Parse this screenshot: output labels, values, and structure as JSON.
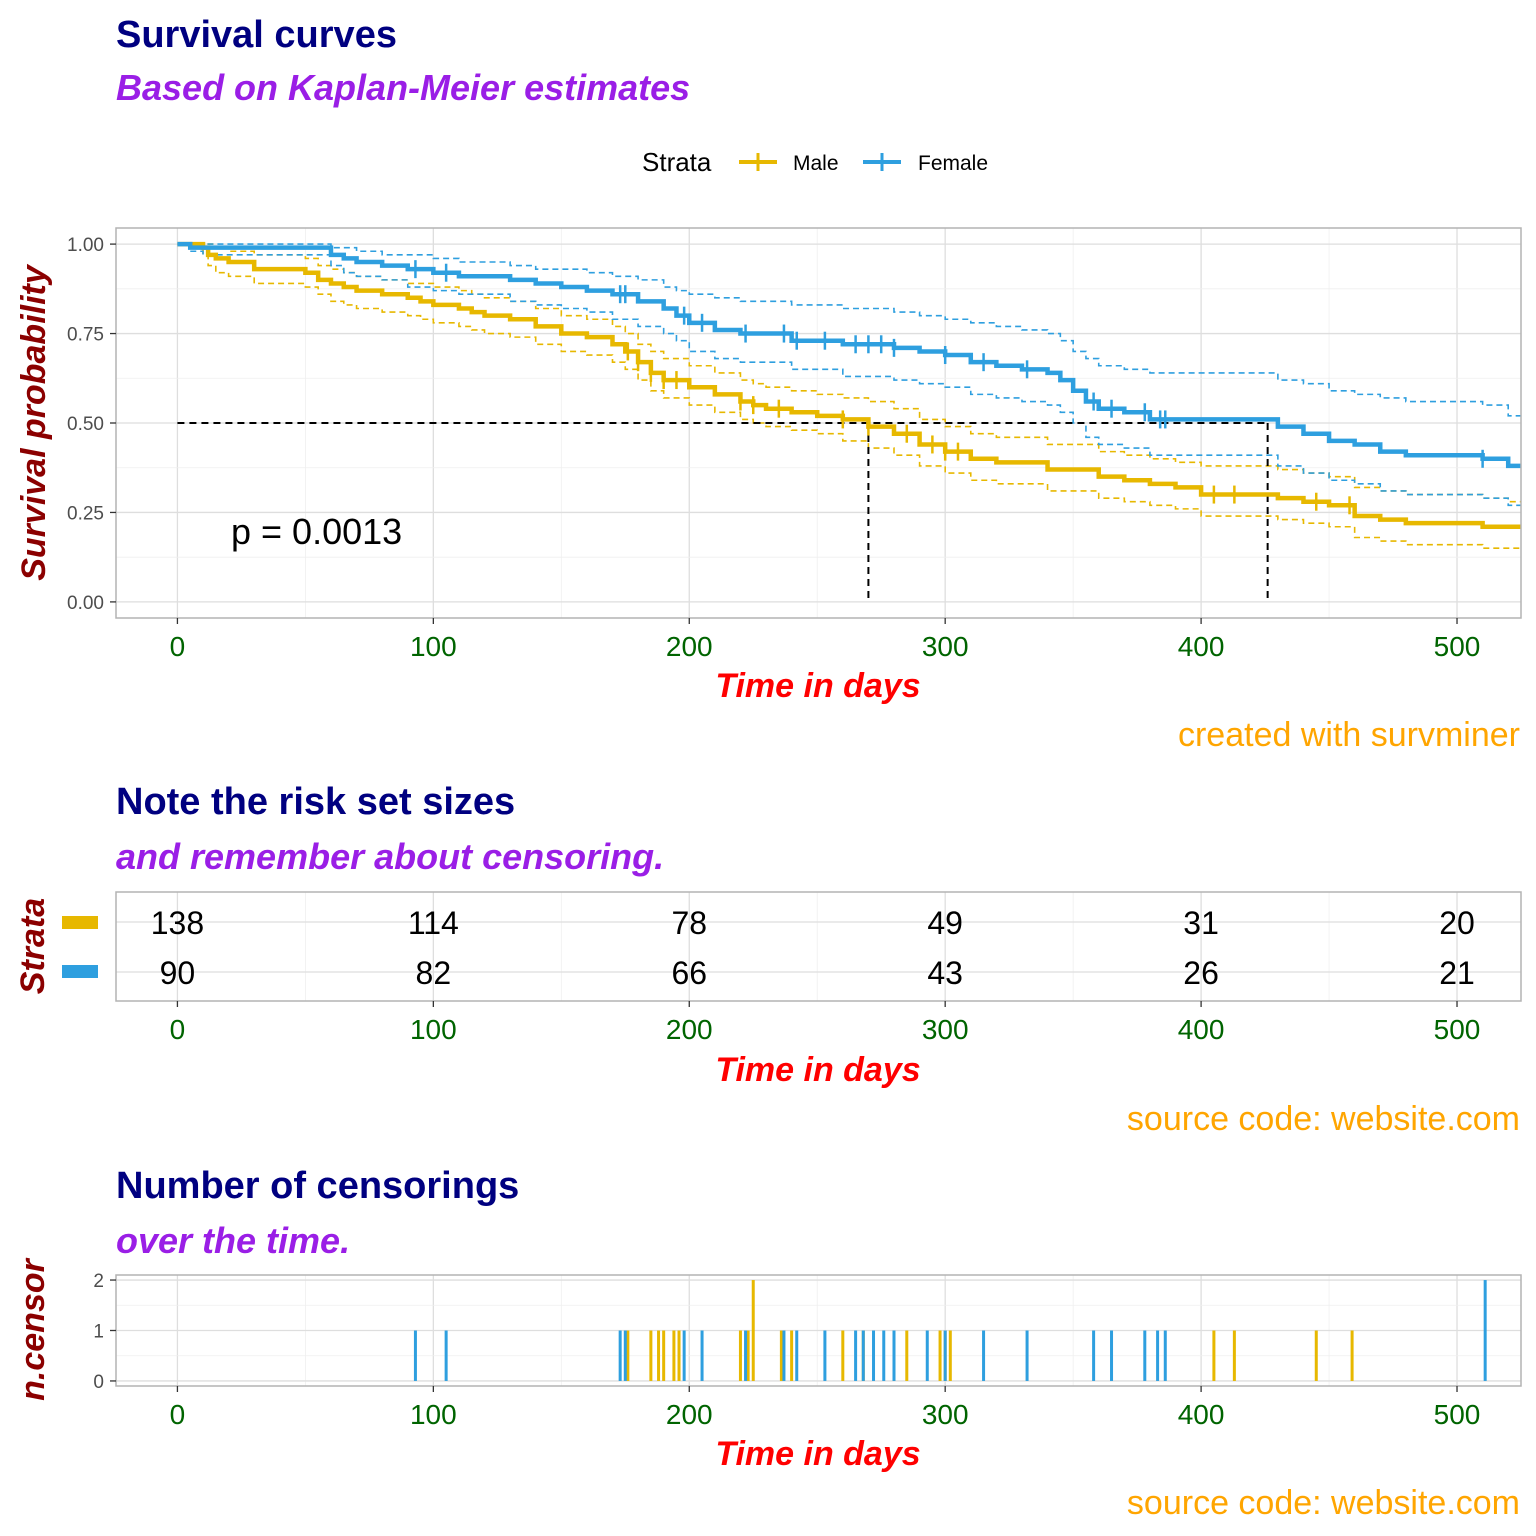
{
  "colors": {
    "male": "#E7B800",
    "female": "#2E9FDF"
  },
  "survival_plot": {
    "title": "Survival curves",
    "subtitle": "Based on Kaplan-Meier estimates",
    "caption": "created with survminer",
    "legend_title": "Strata",
    "xlabel": "Time in days",
    "ylabel": "Survival probability",
    "pvalue": "p = 0.0013"
  },
  "risk_table": {
    "title": "Note the risk set sizes",
    "subtitle": "and remember about censoring.",
    "caption": "source code: website.com",
    "xlabel": "Time in days",
    "ylabel": "Strata"
  },
  "censor_plot": {
    "title": "Number of censorings",
    "subtitle": "over the time.",
    "caption": "source code: website.com",
    "xlabel": "Time in days",
    "ylabel": "n.censor"
  },
  "chart_data": [
    {
      "type": "line",
      "title": "Survival curves",
      "subtitle": "Based on Kaplan-Meier estimates",
      "xlabel": "Time in days",
      "ylabel": "Survival probability",
      "xlim": [
        -24,
        525
      ],
      "ylim": [
        -0.045,
        1.045
      ],
      "x_ticks": [
        0,
        100,
        200,
        300,
        400,
        500
      ],
      "y_ticks": [
        0.0,
        0.25,
        0.5,
        0.75,
        1.0
      ],
      "y_tick_labels": [
        "0.00",
        "0.25",
        "0.50",
        "0.75",
        "1.00"
      ],
      "grid": true,
      "legend_position": "top",
      "median_line": 0.5,
      "medians": [
        270,
        426
      ],
      "series": [
        {
          "name": "Male",
          "color": "#E7B800",
          "x": [
            0,
            10,
            12,
            15,
            20,
            30,
            50,
            55,
            60,
            65,
            70,
            80,
            90,
            95,
            100,
            110,
            115,
            120,
            130,
            140,
            150,
            160,
            170,
            175,
            180,
            185,
            190,
            200,
            210,
            220,
            225,
            230,
            240,
            250,
            260,
            270,
            280,
            290,
            300,
            310,
            320,
            340,
            360,
            370,
            380,
            390,
            400,
            420,
            430,
            440,
            450,
            460,
            470,
            480,
            500,
            510,
            520
          ],
          "y": [
            1.0,
            0.99,
            0.97,
            0.96,
            0.95,
            0.93,
            0.92,
            0.9,
            0.89,
            0.88,
            0.87,
            0.86,
            0.85,
            0.84,
            0.83,
            0.82,
            0.81,
            0.8,
            0.79,
            0.77,
            0.75,
            0.74,
            0.72,
            0.7,
            0.67,
            0.64,
            0.62,
            0.6,
            0.58,
            0.56,
            0.55,
            0.54,
            0.53,
            0.52,
            0.51,
            0.49,
            0.47,
            0.44,
            0.42,
            0.4,
            0.39,
            0.37,
            0.35,
            0.34,
            0.33,
            0.32,
            0.3,
            0.3,
            0.29,
            0.28,
            0.27,
            0.24,
            0.23,
            0.22,
            0.22,
            0.21,
            0.21
          ],
          "upper": [
            1.0,
            1.0,
            1.0,
            0.99,
            0.98,
            0.97,
            0.96,
            0.94,
            0.93,
            0.92,
            0.91,
            0.9,
            0.89,
            0.89,
            0.88,
            0.87,
            0.86,
            0.85,
            0.84,
            0.82,
            0.8,
            0.79,
            0.77,
            0.75,
            0.72,
            0.7,
            0.68,
            0.66,
            0.64,
            0.62,
            0.61,
            0.6,
            0.59,
            0.58,
            0.57,
            0.56,
            0.54,
            0.51,
            0.49,
            0.47,
            0.46,
            0.44,
            0.42,
            0.41,
            0.4,
            0.39,
            0.38,
            0.38,
            0.37,
            0.36,
            0.35,
            0.32,
            0.31,
            0.3,
            0.3,
            0.29,
            0.28
          ],
          "lower": [
            1.0,
            0.97,
            0.94,
            0.92,
            0.91,
            0.89,
            0.88,
            0.86,
            0.84,
            0.83,
            0.82,
            0.81,
            0.8,
            0.79,
            0.78,
            0.77,
            0.76,
            0.75,
            0.74,
            0.72,
            0.7,
            0.69,
            0.67,
            0.65,
            0.62,
            0.59,
            0.57,
            0.55,
            0.53,
            0.51,
            0.5,
            0.49,
            0.48,
            0.47,
            0.45,
            0.43,
            0.41,
            0.38,
            0.36,
            0.34,
            0.33,
            0.31,
            0.29,
            0.28,
            0.27,
            0.26,
            0.24,
            0.24,
            0.23,
            0.22,
            0.21,
            0.18,
            0.17,
            0.16,
            0.16,
            0.15,
            0.15
          ],
          "censor_x": [
            176,
            180,
            185,
            190,
            195,
            220,
            225,
            235,
            260,
            270,
            285,
            295,
            300,
            305,
            405,
            413,
            445,
            458
          ]
        },
        {
          "name": "Female",
          "color": "#2E9FDF",
          "x": [
            0,
            5,
            10,
            20,
            40,
            55,
            60,
            65,
            70,
            80,
            90,
            100,
            110,
            120,
            130,
            140,
            150,
            160,
            170,
            180,
            190,
            195,
            200,
            210,
            220,
            240,
            260,
            280,
            290,
            300,
            310,
            320,
            330,
            340,
            345,
            350,
            355,
            360,
            370,
            380,
            400,
            420,
            430,
            440,
            450,
            460,
            470,
            480,
            500,
            510,
            520
          ],
          "y": [
            1.0,
            0.99,
            0.99,
            0.99,
            0.99,
            0.99,
            0.97,
            0.96,
            0.95,
            0.94,
            0.93,
            0.92,
            0.91,
            0.91,
            0.9,
            0.89,
            0.88,
            0.87,
            0.86,
            0.84,
            0.82,
            0.8,
            0.78,
            0.76,
            0.75,
            0.73,
            0.72,
            0.71,
            0.7,
            0.69,
            0.67,
            0.66,
            0.65,
            0.64,
            0.62,
            0.59,
            0.56,
            0.54,
            0.53,
            0.51,
            0.51,
            0.51,
            0.49,
            0.47,
            0.45,
            0.44,
            0.42,
            0.41,
            0.41,
            0.4,
            0.38
          ],
          "upper": [
            1.0,
            1.0,
            1.0,
            1.0,
            1.0,
            1.0,
            0.99,
            0.99,
            0.98,
            0.97,
            0.97,
            0.96,
            0.95,
            0.95,
            0.94,
            0.93,
            0.93,
            0.92,
            0.91,
            0.9,
            0.88,
            0.87,
            0.86,
            0.85,
            0.84,
            0.83,
            0.82,
            0.81,
            0.8,
            0.79,
            0.78,
            0.77,
            0.76,
            0.75,
            0.73,
            0.7,
            0.68,
            0.66,
            0.65,
            0.64,
            0.64,
            0.64,
            0.62,
            0.61,
            0.59,
            0.58,
            0.57,
            0.56,
            0.56,
            0.55,
            0.52
          ],
          "lower": [
            1.0,
            0.98,
            0.97,
            0.97,
            0.97,
            0.97,
            0.94,
            0.92,
            0.91,
            0.9,
            0.88,
            0.87,
            0.86,
            0.86,
            0.84,
            0.83,
            0.82,
            0.81,
            0.79,
            0.77,
            0.75,
            0.73,
            0.7,
            0.68,
            0.67,
            0.65,
            0.63,
            0.62,
            0.61,
            0.6,
            0.58,
            0.57,
            0.56,
            0.55,
            0.53,
            0.5,
            0.46,
            0.44,
            0.43,
            0.41,
            0.41,
            0.41,
            0.38,
            0.36,
            0.34,
            0.33,
            0.31,
            0.3,
            0.3,
            0.29,
            0.27
          ],
          "censor_x": [
            93,
            105,
            173,
            175,
            198,
            205,
            222,
            237,
            242,
            253,
            265,
            270,
            275,
            280,
            300,
            315,
            332,
            358,
            365,
            378,
            384,
            386,
            510
          ]
        }
      ]
    },
    {
      "type": "table",
      "title": "Note the risk set sizes",
      "subtitle": "and remember about censoring.",
      "xlabel": "Time in days",
      "ylabel": "Strata",
      "x_ticks": [
        0,
        100,
        200,
        300,
        400,
        500
      ],
      "rows": [
        {
          "name": "Male",
          "color": "#E7B800",
          "values": [
            "138",
            "114",
            "78",
            "49",
            "31",
            "20"
          ]
        },
        {
          "name": "Female",
          "color": "#2E9FDF",
          "values": [
            "90",
            "82",
            "66",
            "43",
            "26",
            "21"
          ]
        }
      ]
    },
    {
      "type": "bar",
      "title": "Number of censorings",
      "subtitle": "over the time.",
      "xlabel": "Time in days",
      "ylabel": "n.censor",
      "xlim": [
        -24,
        525
      ],
      "ylim": [
        -0.1,
        2.1
      ],
      "x_ticks": [
        0,
        100,
        200,
        300,
        400,
        500
      ],
      "y_ticks": [
        0,
        1,
        2
      ],
      "grid": true,
      "series": [
        {
          "name": "Male",
          "color": "#E7B800",
          "x": [
            176,
            185,
            188,
            190,
            194,
            196,
            220,
            223,
            225,
            236,
            240,
            260,
            268,
            280,
            285,
            298,
            300,
            302,
            405,
            413,
            445,
            459
          ],
          "values": [
            1,
            1,
            1,
            1,
            1,
            1,
            1,
            1,
            2,
            1,
            1,
            1,
            1,
            1,
            1,
            1,
            1,
            1,
            1,
            1,
            1,
            1
          ]
        },
        {
          "name": "Female",
          "color": "#2E9FDF",
          "x": [
            93,
            105,
            173,
            175,
            198,
            205,
            222,
            237,
            242,
            253,
            265,
            268,
            272,
            276,
            280,
            293,
            300,
            315,
            332,
            358,
            365,
            378,
            383,
            386,
            511
          ],
          "values": [
            1,
            1,
            1,
            1,
            1,
            1,
            1,
            1,
            1,
            1,
            1,
            1,
            1,
            1,
            1,
            1,
            1,
            1,
            1,
            1,
            1,
            1,
            1,
            1,
            2
          ]
        }
      ]
    }
  ]
}
